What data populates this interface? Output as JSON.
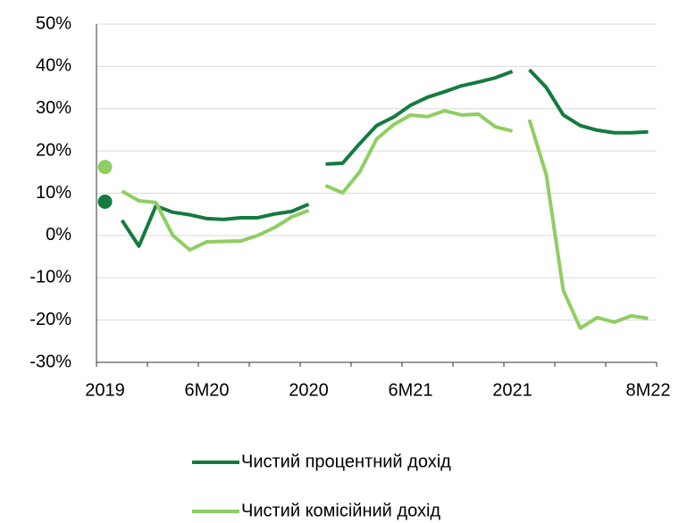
{
  "chart_data": {
    "type": "line",
    "categories": [
      "2019",
      null,
      null,
      null,
      null,
      null,
      "6M20",
      null,
      null,
      null,
      null,
      null,
      "2020",
      null,
      null,
      null,
      null,
      null,
      "6M21",
      null,
      null,
      null,
      null,
      null,
      "2021",
      null,
      null,
      null,
      null,
      null,
      null,
      null,
      "8M22"
    ],
    "series": [
      {
        "name": "Чистий процентний дохід",
        "color": "#137b3f",
        "values": [
          [
            8.0
          ],
          [
            3.6,
            -2.5,
            7.0,
            5.5,
            4.9,
            4.0,
            3.8,
            4.2,
            4.2,
            5.1,
            5.7,
            7.4
          ],
          [
            16.9,
            17.1,
            21.7,
            26.0,
            28.0,
            30.8,
            32.7,
            34.0,
            35.4,
            36.3,
            37.3,
            38.8
          ],
          [
            39.2,
            35.0,
            28.5,
            26.0,
            24.9,
            24.3,
            24.3,
            24.5
          ]
        ]
      },
      {
        "name": "Чистий комісійний дохід",
        "color": "#8fce62",
        "values": [
          [
            16.2
          ],
          [
            10.5,
            8.2,
            7.8,
            0.0,
            -3.4,
            -1.5,
            -1.4,
            -1.3,
            0.0,
            1.9,
            4.4,
            5.9
          ],
          [
            11.8,
            10.1,
            15.0,
            22.8,
            26.2,
            28.5,
            28.1,
            29.5,
            28.5,
            28.7,
            25.7,
            24.7
          ],
          [
            27.4,
            14.3,
            -13.0,
            -21.9,
            -19.4,
            -20.5,
            -19.0,
            -19.6
          ]
        ]
      }
    ],
    "ylim": [
      -30,
      50
    ],
    "yticks": [
      {
        "value": -30,
        "label": "-30%"
      },
      {
        "value": -20,
        "label": "-20%"
      },
      {
        "value": -10,
        "label": "-10%"
      },
      {
        "value": 0,
        "label": "0%"
      },
      {
        "value": 10,
        "label": "10%"
      },
      {
        "value": 20,
        "label": "20%"
      },
      {
        "value": 30,
        "label": "30%"
      },
      {
        "value": 40,
        "label": "40%"
      },
      {
        "value": 50,
        "label": "50%"
      }
    ],
    "grid": true
  }
}
